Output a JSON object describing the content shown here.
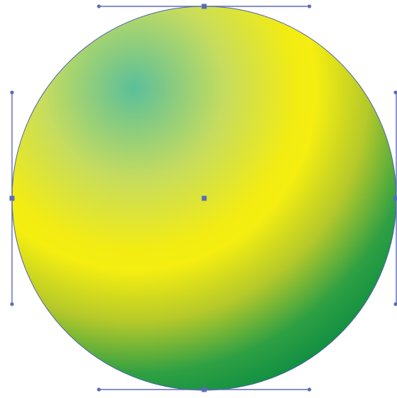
{
  "canvas": {
    "background": "#ffffff"
  },
  "shape": {
    "type": "circle",
    "selected": true,
    "gradient": {
      "type": "radial",
      "stops": [
        {
          "offset": 0.0,
          "color": "#5bbf9a"
        },
        {
          "offset": 0.28,
          "color": "#c6dc5e"
        },
        {
          "offset": 0.52,
          "color": "#f3ec12"
        },
        {
          "offset": 0.72,
          "color": "#b5c92a"
        },
        {
          "offset": 0.88,
          "color": "#2fa043"
        },
        {
          "offset": 1.0,
          "color": "#0f8f42"
        }
      ]
    },
    "stroke_color": "#4e5fa8"
  },
  "selection": {
    "handle_color": "#5b6bb5",
    "line_color": "#5b6bb5",
    "anchors": [
      "top",
      "right",
      "bottom",
      "left"
    ],
    "center_point": true
  }
}
